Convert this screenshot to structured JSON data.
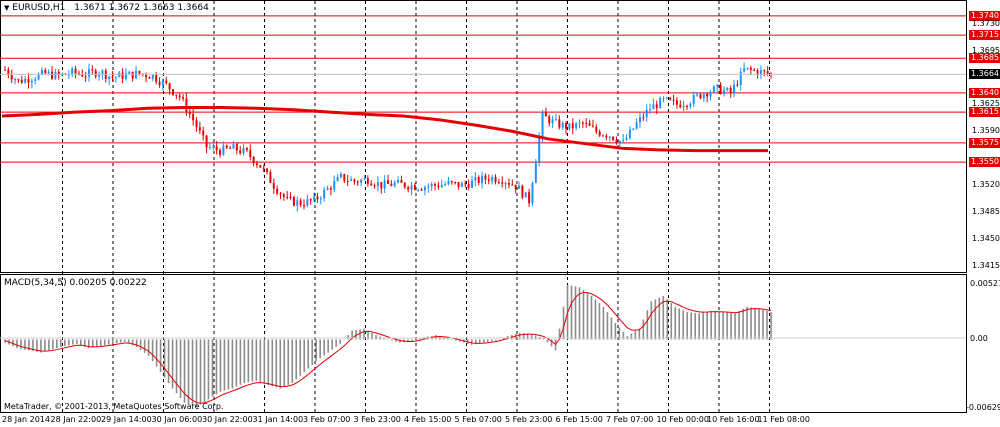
{
  "header": {
    "symbol_label": "EURUSD,H1",
    "ohlc": "1.3671 1.3672 1.3663 1.3664"
  },
  "macd": {
    "label": "MACD(5,34,5) 0.00205 0.00222",
    "y_top": "0.00527",
    "y_zero": "0.00",
    "y_bottom": "-0.00629"
  },
  "copyright": "MetaTrader, © 2001-2013, MetaQuotes Software Corp.",
  "colors": {
    "bull": "#1e90ff",
    "bear": "#e60000",
    "line": "#e60000",
    "grid": "#000000",
    "current_price_bg": "#000000"
  },
  "chart_data": [
    {
      "type": "candlestick",
      "title": "EURUSD,H1",
      "y_ticks": [
        "1.3730",
        "1.3695",
        "1.3625",
        "1.3590",
        "1.3520",
        "1.3485",
        "1.3450",
        "1.3415"
      ],
      "price_levels": [
        "1.3740",
        "1.3715",
        "1.3685",
        "1.3640",
        "1.3615",
        "1.3575",
        "1.3550"
      ],
      "current_price": "1.3664",
      "x_tick_labels": [
        "28 Jan 2014",
        "28 Jan 22:00",
        "29 Jan 14:00",
        "30 Jan 06:00",
        "30 Jan 22:00",
        "31 Jan 14:00",
        "3 Feb 07:00",
        "3 Feb 23:00",
        "4 Feb 15:00",
        "5 Feb 07:00",
        "5 Feb 23:00",
        "6 Feb 15:00",
        "7 Feb 07:00",
        "10 Feb 00:00",
        "10 Feb 16:00",
        "11 Feb 08:00"
      ],
      "close_path": [
        1.367,
        1.3655,
        1.366,
        1.3665,
        1.3662,
        1.3666,
        1.3664,
        1.3668,
        1.366,
        1.3663,
        1.3665,
        1.3662,
        1.365,
        1.3635,
        1.3605,
        1.357,
        1.3565,
        1.3568,
        1.3562,
        1.3545,
        1.352,
        1.35,
        1.3497,
        1.35,
        1.3515,
        1.353,
        1.3525,
        1.3528,
        1.352,
        1.3522,
        1.352,
        1.3518,
        1.352,
        1.3522,
        1.352,
        1.3525,
        1.353,
        1.3528,
        1.352,
        1.35,
        1.361,
        1.36,
        1.3595,
        1.36,
        1.359,
        1.3585,
        1.3575,
        1.36,
        1.362,
        1.363,
        1.3625,
        1.363,
        1.364,
        1.3645,
        1.364,
        1.367,
        1.3668,
        1.3664
      ],
      "ma_path": [
        1.361,
        1.3612,
        1.3615,
        1.3617,
        1.362,
        1.3621,
        1.3621,
        1.362,
        1.3618,
        1.3615,
        1.3612,
        1.361,
        1.3605,
        1.3598,
        1.359,
        1.358,
        1.3574,
        1.3568,
        1.3566,
        1.3565,
        1.3565,
        1.3565
      ]
    },
    {
      "type": "bar",
      "title": "MACD(5,34,5)",
      "ylim": [
        -0.00629,
        0.00527
      ],
      "histogram": [
        -0.0003,
        -0.0008,
        -0.001,
        -0.0012,
        -0.0009,
        -0.0006,
        -0.0004,
        -0.0008,
        -0.0006,
        -0.0004,
        -0.0002,
        -0.0007,
        -0.0015,
        -0.003,
        -0.0045,
        -0.0058,
        -0.0062,
        -0.0055,
        -0.0048,
        -0.0045,
        -0.004,
        -0.0038,
        -0.0042,
        -0.0045,
        -0.004,
        -0.003,
        -0.002,
        -0.0012,
        -0.0004,
        0.0008,
        0.001,
        0.0004,
        0.0,
        -0.0003,
        -0.0002,
        0.0002,
        0.0004,
        0.0001,
        -0.0002,
        -0.0005,
        -0.0003,
        -0.0001,
        0.0003,
        0.0006,
        0.0005,
        0.0001,
        -0.001,
        0.005,
        0.0048,
        0.004,
        0.003,
        0.0015,
        0.0003,
        0.001,
        0.0035,
        0.004,
        0.003,
        0.0025,
        0.0024,
        0.0026,
        0.0025,
        0.0024,
        0.003,
        0.0028,
        0.0025
      ]
    }
  ]
}
